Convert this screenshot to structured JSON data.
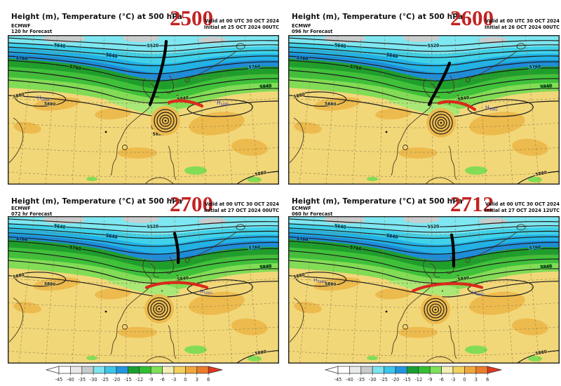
{
  "panels": [
    {
      "title": "Height (m), Temperature (°C) at 500 hPa",
      "model": "ECMWF",
      "forecast": "120 hr Forecast",
      "annotation_number": "2500",
      "valid_line": "Valid at 00 UTC 30 OCT 2024",
      "initial_line": "Initial at 25 OCT 2024 00UTC",
      "h_labels": [
        "H5884",
        "H5880"
      ]
    },
    {
      "title": "Height (m), Temperature (°C) at 500 hPa",
      "model": "ECMWF",
      "forecast": "096 hr Forecast",
      "annotation_number": "2600",
      "valid_line": "Valid at 00 UTC 30 OCT 2024",
      "initial_line": "Initial at 26 OCT 2024 00UTC",
      "h_labels": [
        "H5882"
      ]
    },
    {
      "title": "Height (m), Temperature (°C) at 500 hPa",
      "model": "ECMWF",
      "forecast": "072 hr Forecast",
      "annotation_number": "2700",
      "valid_line": "Valid at 00 UTC 30 OCT 2024",
      "initial_line": "Initial at 27 OCT 2024 00UTC",
      "h_labels": [
        "H5883"
      ]
    },
    {
      "title": "Height (m), Temperature (°C) at 500 hPa",
      "model": "ECMWF",
      "forecast": "060 hr Forecast",
      "annotation_number": "2712",
      "valid_line": "Valid at 00 UTC 30 OCT 2024",
      "initial_line": "Initial at 27 OCT 2024 12UTC",
      "h_labels": [
        "H5884",
        "H5882"
      ]
    }
  ],
  "map": {
    "contour_labels": [
      "5520",
      "5640",
      "5640",
      "5760",
      "5760",
      "5760",
      "5840",
      "5840",
      "5880",
      "5880",
      "5880",
      "5880"
    ],
    "colors": {
      "yellow": "#f2d779",
      "orange": "#edbb4d",
      "pale_green": "#a9e876",
      "light_green": "#82dc55",
      "mid_green": "#3fc13a",
      "dark_green": "#1f9e2c",
      "blue": "#1e8cd8",
      "deep_cyan": "#23b2e5",
      "cyan": "#3fd2ea",
      "pale_cyan": "#7ee7f1",
      "gray": "#c9cdcd",
      "contour": "#1c1c1c",
      "grid": "#96834f",
      "coast": "#4a3a1c",
      "h_label": "#4343b0",
      "annotation_black": "#000000",
      "annotation_red": "#d92a1c",
      "big_number": "#c32222",
      "frame": "#222222"
    }
  },
  "colorbar": {
    "ticks": [
      "-45",
      "-40",
      "-35",
      "-30",
      "-25",
      "-20",
      "-15",
      "-12",
      "-9",
      "-6",
      "-3",
      "0",
      "3",
      "6"
    ],
    "segment_colors": [
      "#ffffff",
      "#e9e9e9",
      "#c7cbcb",
      "#7de4ee",
      "#3cc6ea",
      "#2196e0",
      "#1a9e33",
      "#33bf33",
      "#7fe057",
      "#f2eeb6",
      "#f2d25c",
      "#f0a83c",
      "#ec7d2b"
    ],
    "left_arrow_color": "#ffffff",
    "right_arrow_color": "#e1371f"
  }
}
